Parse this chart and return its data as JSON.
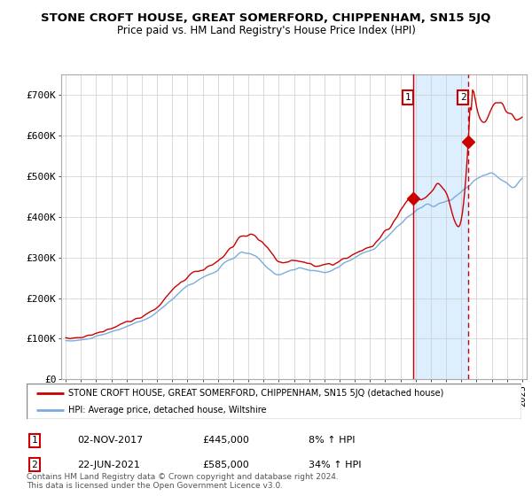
{
  "title": "STONE CROFT HOUSE, GREAT SOMERFORD, CHIPPENHAM, SN15 5JQ",
  "subtitle": "Price paid vs. HM Land Registry's House Price Index (HPI)",
  "legend_line1": "STONE CROFT HOUSE, GREAT SOMERFORD, CHIPPENHAM, SN15 5JQ (detached house)",
  "legend_line2": "HPI: Average price, detached house, Wiltshire",
  "annotation1_date": "02-NOV-2017",
  "annotation1_price": "£445,000",
  "annotation1_hpi": "8% ↑ HPI",
  "annotation2_date": "22-JUN-2021",
  "annotation2_price": "£585,000",
  "annotation2_hpi": "34% ↑ HPI",
  "footnote": "Contains HM Land Registry data © Crown copyright and database right 2024.\nThis data is licensed under the Open Government Licence v3.0.",
  "house_color": "#cc0000",
  "hpi_color": "#7aacdc",
  "shade_color": "#ddeeff",
  "ylim": [
    0,
    750000
  ],
  "yticks": [
    0,
    100000,
    200000,
    300000,
    400000,
    500000,
    600000,
    700000
  ],
  "ytick_labels": [
    "£0",
    "£100K",
    "£200K",
    "£300K",
    "£400K",
    "£500K",
    "£600K",
    "£700K"
  ],
  "sale1_year": 2017.84,
  "sale1_value": 445000,
  "sale2_year": 2021.47,
  "sale2_value": 585000,
  "background_color": "#ffffff",
  "grid_color": "#cccccc"
}
